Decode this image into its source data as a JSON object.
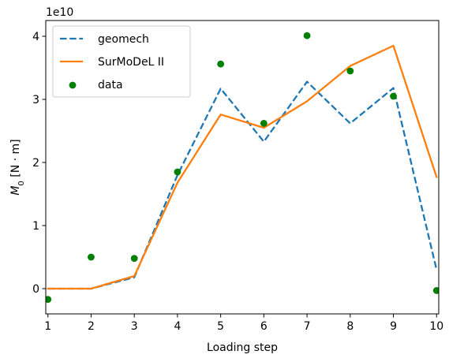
{
  "chart_data": {
    "type": "line",
    "xlabel": "Loading step",
    "ylabel_main": "M",
    "ylabel_sub": "0",
    "ylabel_unit": " [N · m]",
    "offset_text": "1e10",
    "xlim": [
      0.95,
      10.05
    ],
    "ylim": [
      -4000000000.0,
      42500000000.0
    ],
    "x_ticks": [
      1,
      2,
      3,
      4,
      5,
      6,
      7,
      8,
      9,
      10
    ],
    "x_tick_labels": [
      "1",
      "2",
      "3",
      "4",
      "5",
      "6",
      "7",
      "8",
      "9",
      "10"
    ],
    "y_ticks": [
      0,
      10000000000.0,
      20000000000.0,
      30000000000.0,
      40000000000.0
    ],
    "y_tick_labels": [
      "0",
      "1",
      "2",
      "3",
      "4"
    ],
    "grid": false,
    "legend_position": "top-left",
    "series": [
      {
        "name": "geomech",
        "kind": "line",
        "style": "dashed",
        "color": "#1f77b4",
        "x": [
          1,
          2,
          3,
          4,
          5,
          6,
          7,
          8,
          9,
          10
        ],
        "y": [
          0,
          0,
          1800000000.0,
          18000000000.0,
          31700000000.0,
          23300000000.0,
          32800000000.0,
          26200000000.0,
          31800000000.0,
          3000000000.0
        ]
      },
      {
        "name": "SurMoDeL II",
        "kind": "line",
        "style": "solid",
        "color": "#ff7f0e",
        "x": [
          1,
          2,
          3,
          4,
          5,
          6,
          7,
          8,
          9,
          10
        ],
        "y": [
          0,
          0,
          2000000000.0,
          16800000000.0,
          27600000000.0,
          25500000000.0,
          29700000000.0,
          35300000000.0,
          38500000000.0,
          17700000000.0
        ]
      },
      {
        "name": "data",
        "kind": "scatter",
        "color": "#008000",
        "x": [
          1,
          2,
          3,
          4,
          5,
          6,
          7,
          8,
          9,
          10
        ],
        "y": [
          -1700000000.0,
          5000000000.0,
          4800000000.0,
          18500000000.0,
          35600000000.0,
          26200000000.0,
          40100000000.0,
          34500000000.0,
          30500000000.0,
          -300000000.0
        ]
      }
    ]
  }
}
